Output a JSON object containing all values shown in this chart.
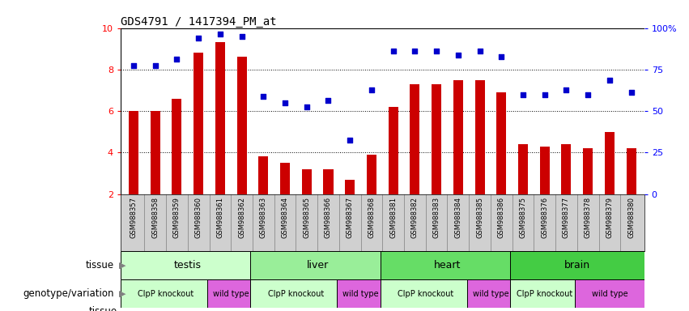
{
  "title": "GDS4791 / 1417394_PM_at",
  "samples": [
    "GSM988357",
    "GSM988358",
    "GSM988359",
    "GSM988360",
    "GSM988361",
    "GSM988362",
    "GSM988363",
    "GSM988364",
    "GSM988365",
    "GSM988366",
    "GSM988367",
    "GSM988368",
    "GSM988381",
    "GSM988382",
    "GSM988383",
    "GSM988384",
    "GSM988385",
    "GSM988386",
    "GSM988375",
    "GSM988376",
    "GSM988377",
    "GSM988378",
    "GSM988379",
    "GSM988380"
  ],
  "bar_values": [
    6.0,
    6.0,
    6.6,
    8.8,
    9.3,
    8.6,
    3.8,
    3.5,
    3.2,
    3.2,
    2.7,
    3.9,
    6.2,
    7.3,
    7.3,
    7.5,
    7.5,
    6.9,
    4.4,
    4.3,
    4.4,
    4.2,
    5.0,
    4.2
  ],
  "dot_values": [
    8.2,
    8.2,
    8.5,
    9.5,
    9.7,
    9.6,
    6.7,
    6.4,
    6.2,
    6.5,
    4.6,
    7.0,
    8.9,
    8.9,
    8.9,
    8.7,
    8.9,
    8.6,
    6.8,
    6.8,
    7.0,
    6.8,
    7.5,
    6.9
  ],
  "ylim": [
    2,
    10
  ],
  "yticks": [
    2,
    4,
    6,
    8,
    10
  ],
  "ytick_right_vals": [
    0,
    25,
    50,
    75,
    100
  ],
  "ytick_right_labels": [
    "0",
    "25",
    "50",
    "75",
    "100%"
  ],
  "bar_color": "#cc0000",
  "dot_color": "#0000cc",
  "plot_bg": "#ffffff",
  "xtick_bg": "#d0d0d0",
  "tissues": [
    {
      "label": "testis",
      "start": 0,
      "end": 6,
      "color": "#ccffcc"
    },
    {
      "label": "liver",
      "start": 6,
      "end": 12,
      "color": "#99ee99"
    },
    {
      "label": "heart",
      "start": 12,
      "end": 18,
      "color": "#66dd66"
    },
    {
      "label": "brain",
      "start": 18,
      "end": 24,
      "color": "#44cc44"
    }
  ],
  "genotypes": [
    {
      "label": "ClpP knockout",
      "start": 0,
      "end": 4,
      "color": "#ccffcc"
    },
    {
      "label": "wild type",
      "start": 4,
      "end": 6,
      "color": "#dd66dd"
    },
    {
      "label": "ClpP knockout",
      "start": 6,
      "end": 10,
      "color": "#ccffcc"
    },
    {
      "label": "wild type",
      "start": 10,
      "end": 12,
      "color": "#dd66dd"
    },
    {
      "label": "ClpP knockout",
      "start": 12,
      "end": 16,
      "color": "#ccffcc"
    },
    {
      "label": "wild type",
      "start": 16,
      "end": 18,
      "color": "#dd66dd"
    },
    {
      "label": "ClpP knockout",
      "start": 18,
      "end": 21,
      "color": "#ccffcc"
    },
    {
      "label": "wild type",
      "start": 21,
      "end": 24,
      "color": "#dd66dd"
    }
  ]
}
